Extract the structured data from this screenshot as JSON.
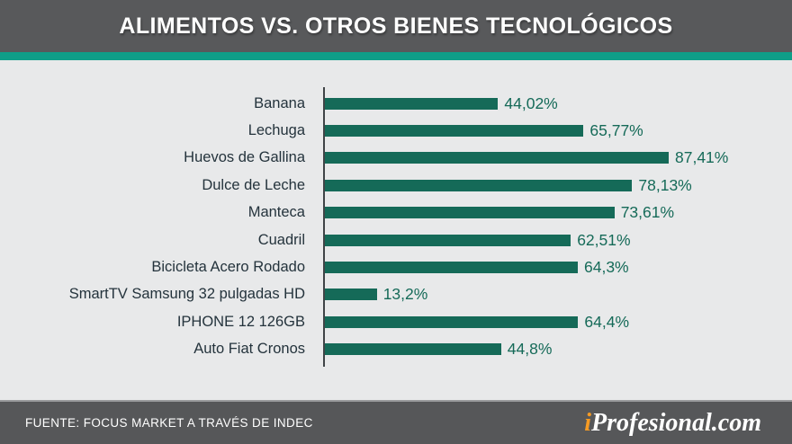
{
  "header": {
    "title": "ALIMENTOS VS. OTROS BIENES TECNOLÓGICOS"
  },
  "colors": {
    "header_bg": "#58595b",
    "accent_teal": "#0f9e88",
    "bar_teal": "#156a58",
    "background": "#e8e9ea",
    "label_dark": "#24333c",
    "footer_bg": "#565759",
    "logo_orange": "#f59a23"
  },
  "chart_data": {
    "type": "bar",
    "orientation": "horizontal",
    "title": "ALIMENTOS VS. OTROS BIENES TECNOLÓGICOS",
    "categories": [
      "Banana",
      "Lechuga",
      "Huevos de Gallina",
      "Dulce de Leche",
      "Manteca",
      "Cuadril",
      "Bicicleta Acero Rodado",
      "SmartTV Samsung 32 pulgadas HD",
      "IPHONE 12 126GB",
      "Auto Fiat Cronos"
    ],
    "values": [
      44.02,
      65.77,
      87.41,
      78.13,
      73.61,
      62.51,
      64.3,
      13.2,
      64.4,
      44.8
    ],
    "value_labels": [
      "44,02%",
      "65,77%",
      "87,41%",
      "78,13%",
      "73,61%",
      "62,51%",
      "64,3%",
      "13,2%",
      "64,4%",
      "44,8%"
    ],
    "xlabel": "",
    "ylabel": "",
    "xlim": [
      0,
      90
    ],
    "grid": false,
    "legend": false,
    "data_labels": true
  },
  "footer": {
    "source": "FUENTE: FOCUS MARKET A TRAVÉS DE INDEC",
    "logo_prefix": "i",
    "logo_rest": "Profesional.com"
  }
}
